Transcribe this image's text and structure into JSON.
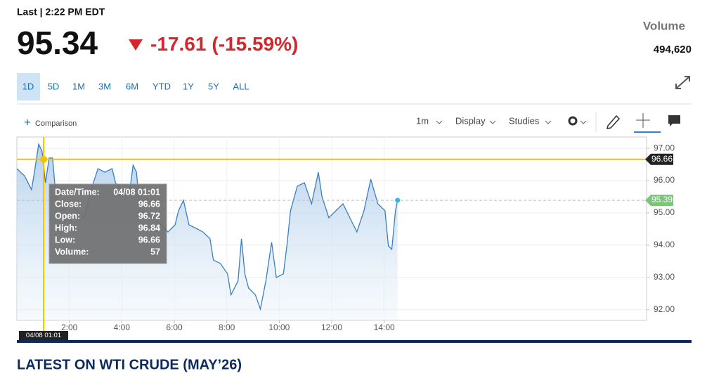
{
  "header": {
    "last_time": "Last | 2:22 PM EDT",
    "price": "95.34",
    "change": "-17.61",
    "change_pct": "(-15.59%)",
    "volume_label": "Volume",
    "volume": "494,620"
  },
  "ranges": [
    "1D",
    "5D",
    "1M",
    "3M",
    "6M",
    "YTD",
    "1Y",
    "5Y",
    "ALL"
  ],
  "toolbar": {
    "comparison": "Comparison",
    "interval": "1m",
    "display": "Display",
    "studies": "Studies"
  },
  "tooltip": {
    "rows": [
      [
        "Date/Time:",
        "04/08 01:01"
      ],
      [
        "Close:",
        "96.66"
      ],
      [
        "Open:",
        "96.72"
      ],
      [
        "High:",
        "96.84"
      ],
      [
        "Low:",
        "96.66"
      ],
      [
        "Volume:",
        "57"
      ]
    ]
  },
  "chart_data": {
    "type": "line",
    "x": [
      0,
      0.29,
      0.56,
      0.69,
      0.83,
      0.96,
      1.09,
      1.23,
      1.36,
      1.49,
      1.76,
      2.03,
      2.29,
      2.56,
      2.83,
      3.09,
      3.36,
      3.63,
      3.76,
      4.03,
      4.29,
      4.43,
      4.56,
      4.69,
      4.96,
      5.23,
      5.49,
      5.76,
      6.03,
      6.16,
      6.35,
      6.56,
      6.83,
      7.09,
      7.36,
      7.49,
      7.76,
      8.03,
      8.16,
      8.43,
      8.56,
      8.69,
      8.83,
      9.09,
      9.28,
      9.49,
      9.71,
      9.89,
      10.16,
      10.29,
      10.43,
      10.69,
      10.96,
      11.23,
      11.49,
      11.63,
      11.89,
      12.16,
      12.43,
      12.69,
      12.96,
      13.23,
      13.49,
      13.76,
      14.03,
      14.16,
      14.29,
      14.43,
      14.51
    ],
    "series": [
      {
        "name": "WTI Crude",
        "color": "#3a7fc1",
        "values": [
          96.37,
          96.15,
          95.72,
          96.37,
          97.13,
          96.91,
          95.93,
          96.7,
          96.7,
          95.5,
          95.07,
          95.28,
          95.07,
          94.85,
          95.72,
          96.37,
          96.26,
          96.37,
          95.93,
          95.72,
          95.61,
          96.48,
          96.26,
          95.07,
          94.96,
          94.85,
          94.63,
          94.41,
          94.63,
          95.07,
          95.39,
          94.63,
          94.52,
          94.41,
          94.2,
          93.54,
          93.43,
          93.11,
          92.46,
          92.89,
          94.2,
          93.11,
          92.67,
          92.46,
          92.02,
          92.89,
          94.09,
          93.0,
          93.11,
          93.98,
          95.07,
          95.83,
          95.93,
          95.28,
          96.26,
          95.5,
          94.85,
          95.07,
          95.28,
          94.85,
          94.41,
          95.07,
          96.04,
          95.28,
          95.07,
          93.98,
          93.87,
          95.07,
          95.39
        ]
      }
    ],
    "xlim": [
      0,
      24
    ],
    "xticks": [
      {
        "value": 2,
        "label": "2:00"
      },
      {
        "value": 4,
        "label": "4:00"
      },
      {
        "value": 6,
        "label": "6:00"
      },
      {
        "value": 8,
        "label": "8:00"
      },
      {
        "value": 10,
        "label": "10:00"
      },
      {
        "value": 12,
        "label": "12:00"
      },
      {
        "value": 14,
        "label": "14:00"
      }
    ],
    "ylim": [
      91.67,
      97.35
    ],
    "yticks": [
      {
        "value": 92,
        "label": "92.00"
      },
      {
        "value": 93,
        "label": "93.00"
      },
      {
        "value": 94,
        "label": "94.00"
      },
      {
        "value": 95,
        "label": "95.00"
      },
      {
        "value": 96,
        "label": "96.00"
      },
      {
        "value": 97,
        "label": "97.00"
      }
    ],
    "grid": true,
    "crosshair": {
      "x": 1.02,
      "y": 96.66,
      "x_label": "04/08 01:01",
      "color": "#f2c200"
    }
  },
  "footer": {
    "title": "LATEST ON WTI CRUDE (MAY’26)"
  }
}
